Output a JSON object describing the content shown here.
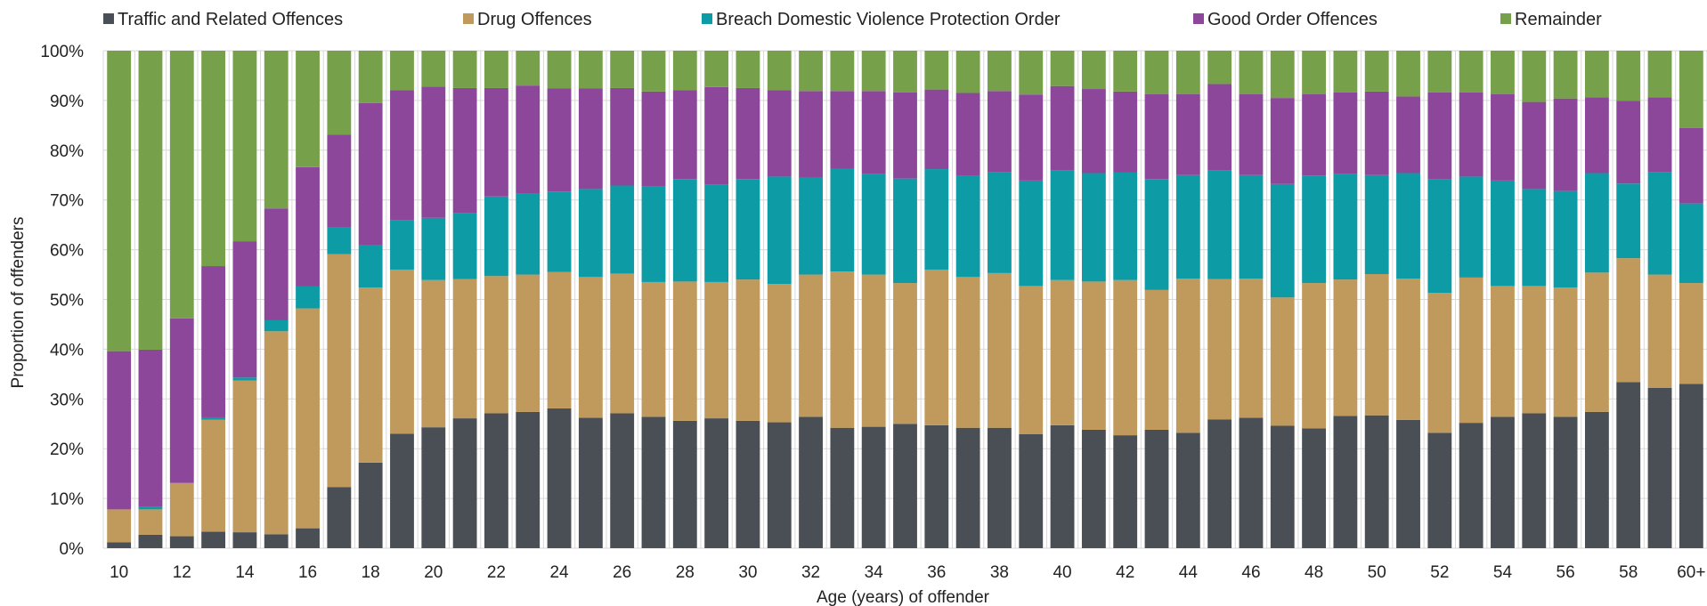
{
  "chart_data": {
    "type": "bar",
    "stacked": true,
    "normalized": true,
    "xlabel": "Age (years)  of offender",
    "ylabel": "Proportion of offenders",
    "ylim": [
      0,
      100
    ],
    "y_ticks": [
      "0%",
      "10%",
      "20%",
      "30%",
      "40%",
      "50%",
      "60%",
      "70%",
      "80%",
      "90%",
      "100%"
    ],
    "grid": "horizontal",
    "legend_position": "top",
    "categories": [
      "10",
      "11",
      "12",
      "13",
      "14",
      "15",
      "16",
      "17",
      "18",
      "19",
      "20",
      "21",
      "22",
      "23",
      "24",
      "25",
      "26",
      "27",
      "28",
      "29",
      "30",
      "31",
      "32",
      "33",
      "34",
      "35",
      "36",
      "37",
      "38",
      "39",
      "40",
      "41",
      "42",
      "43",
      "44",
      "45",
      "46",
      "47",
      "48",
      "49",
      "50",
      "51",
      "52",
      "53",
      "54",
      "55",
      "56",
      "57",
      "58",
      "59",
      "60+"
    ],
    "x_tick_labels": [
      "10",
      "12",
      "14",
      "16",
      "18",
      "20",
      "22",
      "24",
      "26",
      "28",
      "30",
      "32",
      "34",
      "36",
      "38",
      "40",
      "42",
      "44",
      "46",
      "48",
      "50",
      "52",
      "54",
      "56",
      "58",
      "60+"
    ],
    "series": [
      {
        "name": "Traffic and Related Offences",
        "color": "#4a4f55",
        "values": [
          1.2,
          2.7,
          2.4,
          3.3,
          3.2,
          2.8,
          4.0,
          12.3,
          17.2,
          23.0,
          24.3,
          26.1,
          27.1,
          27.4,
          28.1,
          26.2,
          27.1,
          26.4,
          25.6,
          26.1,
          25.6,
          25.3,
          26.4,
          24.2,
          24.4,
          25.0,
          24.7,
          24.2,
          24.2,
          22.9,
          24.7,
          23.8,
          22.7,
          23.8,
          23.2,
          25.9,
          26.2,
          24.6,
          24.1,
          26.6,
          26.7,
          25.8,
          23.2,
          25.2,
          26.4,
          27.1,
          26.4,
          27.4,
          33.4,
          32.2,
          33.0
        ]
      },
      {
        "name": "Drug Offences",
        "color": "#bf9a5c",
        "values": [
          6.6,
          5.1,
          10.7,
          22.5,
          30.5,
          40.8,
          44.2,
          46.8,
          35.2,
          33.0,
          29.6,
          28.0,
          27.6,
          27.6,
          27.4,
          28.3,
          28.1,
          27.1,
          28.0,
          27.4,
          28.4,
          27.8,
          28.6,
          31.4,
          30.6,
          28.3,
          31.3,
          30.3,
          31.1,
          29.8,
          29.2,
          29.8,
          31.2,
          28.1,
          31.0,
          28.2,
          28.0,
          25.8,
          29.2,
          27.4,
          28.4,
          28.4,
          28.1,
          29.2,
          26.3,
          25.6,
          26.0,
          28.0,
          24.9,
          22.8,
          20.3
        ]
      },
      {
        "name": "Breach Domestic Violence Protection Order",
        "color": "#0d9ba6",
        "values": [
          0.0,
          0.6,
          0.0,
          0.5,
          0.6,
          2.2,
          4.4,
          5.4,
          8.5,
          10.0,
          12.5,
          13.2,
          16.0,
          16.3,
          16.2,
          17.7,
          17.7,
          19.2,
          20.6,
          19.6,
          20.2,
          21.6,
          19.5,
          20.7,
          20.3,
          21.0,
          20.2,
          20.3,
          20.3,
          21.2,
          22.0,
          21.8,
          21.6,
          22.3,
          20.8,
          21.8,
          20.8,
          22.8,
          21.6,
          21.3,
          19.9,
          21.2,
          22.8,
          20.3,
          21.2,
          19.5,
          19.4,
          20.0,
          15.0,
          20.6,
          16.0
        ]
      },
      {
        "name": "Good Order Offences",
        "color": "#8c479a",
        "values": [
          31.8,
          31.5,
          33.1,
          30.4,
          27.4,
          22.5,
          24.0,
          18.6,
          28.6,
          26.1,
          26.4,
          25.2,
          21.8,
          21.7,
          20.7,
          20.2,
          19.6,
          19.1,
          17.9,
          19.6,
          18.3,
          17.4,
          17.4,
          15.6,
          16.6,
          17.3,
          16.0,
          16.7,
          16.3,
          17.3,
          17.0,
          16.9,
          16.3,
          17.1,
          16.3,
          17.4,
          16.3,
          17.3,
          16.4,
          16.3,
          16.8,
          15.4,
          17.5,
          16.9,
          17.4,
          17.5,
          18.6,
          15.2,
          16.6,
          15.0,
          15.2
        ]
      },
      {
        "name": "Remainder",
        "color": "#76a14a",
        "values": [
          60.4,
          60.1,
          53.8,
          43.3,
          38.3,
          31.7,
          23.4,
          16.9,
          10.5,
          7.9,
          7.2,
          7.5,
          7.5,
          7.0,
          7.6,
          7.6,
          7.5,
          8.2,
          7.9,
          7.3,
          7.5,
          7.9,
          8.1,
          8.1,
          8.1,
          8.4,
          7.8,
          8.5,
          8.1,
          8.8,
          7.1,
          7.7,
          8.2,
          8.7,
          8.7,
          6.7,
          8.7,
          9.5,
          8.7,
          8.4,
          8.2,
          9.2,
          8.4,
          8.4,
          8.7,
          10.3,
          9.6,
          9.4,
          10.1,
          9.4,
          15.5
        ]
      }
    ]
  }
}
